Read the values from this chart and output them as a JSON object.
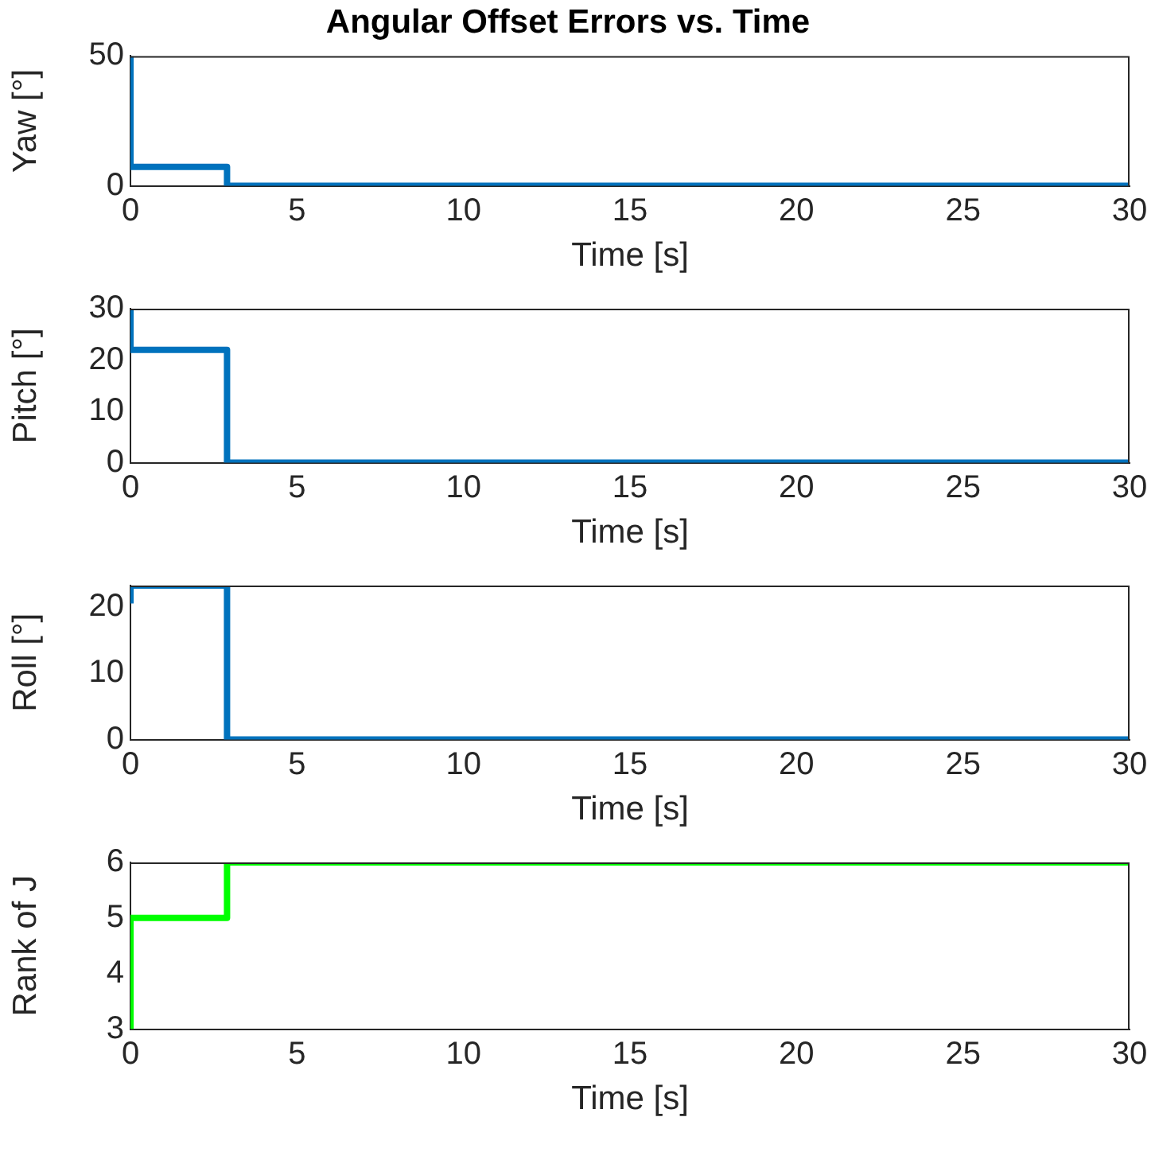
{
  "chart_data": [
    {
      "type": "step",
      "title": "Angular Offset Errors vs. Time",
      "xlabel": "Time [s]",
      "ylabel": "Yaw [°]",
      "xlim": [
        0,
        30
      ],
      "xticks": [
        0,
        5,
        10,
        15,
        20,
        25,
        30
      ],
      "ylim": [
        0,
        50
      ],
      "yticks": [
        0,
        50
      ],
      "grid": false,
      "legend": false,
      "series": [
        {
          "color": "#0072bd",
          "x": [
            0,
            0,
            2.9,
            30
          ],
          "values": [
            50,
            7.3,
            0,
            0
          ]
        }
      ]
    },
    {
      "type": "step",
      "xlabel": "Time [s]",
      "ylabel": "Pitch [°]",
      "xlim": [
        0,
        30
      ],
      "xticks": [
        0,
        5,
        10,
        15,
        20,
        25,
        30
      ],
      "ylim": [
        0,
        30
      ],
      "yticks": [
        0,
        10,
        20,
        30
      ],
      "grid": false,
      "legend": false,
      "series": [
        {
          "color": "#0072bd",
          "x": [
            0,
            0,
            2.9,
            30
          ],
          "values": [
            30,
            22,
            0,
            0
          ]
        }
      ]
    },
    {
      "type": "step",
      "xlabel": "Time [s]",
      "ylabel": "Roll [°]",
      "xlim": [
        0,
        30
      ],
      "xticks": [
        0,
        5,
        10,
        15,
        20,
        25,
        30
      ],
      "ylim": [
        0,
        23.2
      ],
      "yticks": [
        0,
        10,
        20
      ],
      "grid": false,
      "legend": false,
      "series": [
        {
          "color": "#0072bd",
          "x": [
            0,
            0,
            2.9,
            30
          ],
          "values": [
            20.5,
            23.2,
            0,
            0
          ]
        }
      ]
    },
    {
      "type": "step",
      "xlabel": "Time [s]",
      "ylabel": "Rank of J",
      "xlim": [
        0,
        30
      ],
      "xticks": [
        0,
        5,
        10,
        15,
        20,
        25,
        30
      ],
      "ylim": [
        3,
        6
      ],
      "yticks": [
        3,
        4,
        5,
        6
      ],
      "grid": false,
      "legend": false,
      "series": [
        {
          "color": "#00ff00",
          "x": [
            0,
            0,
            2.9,
            30
          ],
          "values": [
            3,
            5,
            6,
            6
          ]
        }
      ]
    }
  ]
}
